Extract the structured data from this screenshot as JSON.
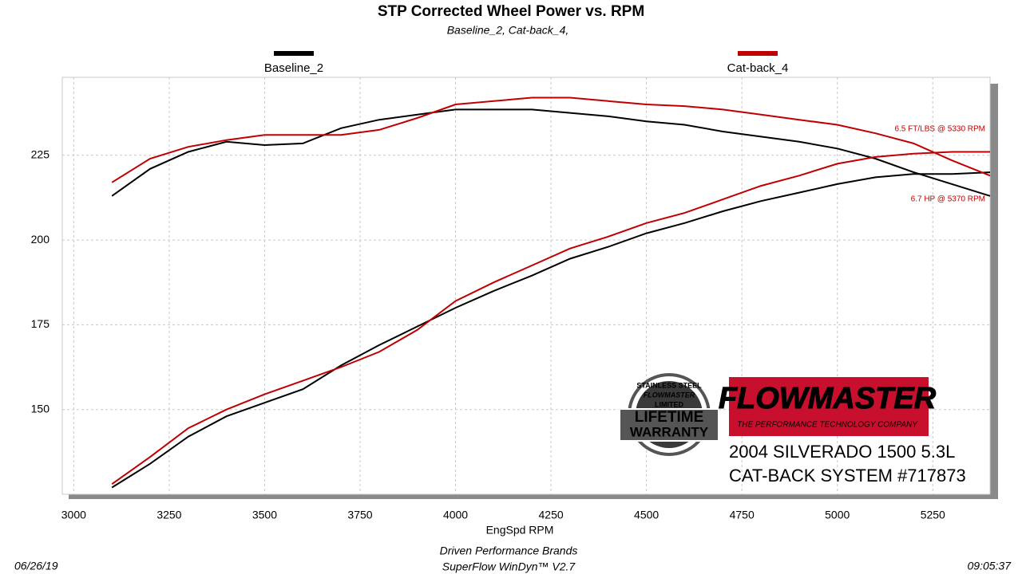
{
  "chart_data": {
    "type": "line",
    "title": "STP Corrected Wheel Power vs. RPM",
    "subtitle": "Baseline_2, Cat-back_4,",
    "x_label": "EngSpd  RPM",
    "x": [
      3100,
      3200,
      3300,
      3400,
      3500,
      3600,
      3700,
      3800,
      3900,
      4000,
      4100,
      4200,
      4300,
      4400,
      4500,
      4600,
      4700,
      4800,
      4900,
      5000,
      5100,
      5200,
      5300,
      5400
    ],
    "series": [
      {
        "name": "Baseline_2",
        "color": "#000000",
        "curves": [
          [
            213,
            221,
            226,
            229,
            228,
            228.5,
            233,
            235.5,
            237,
            238.5,
            238.5,
            238.5,
            237.5,
            236.5,
            235,
            234,
            232,
            230.5,
            229,
            227,
            224,
            220,
            216.5,
            213
          ],
          [
            127,
            134,
            142,
            148,
            152,
            156,
            163,
            169,
            174.5,
            180,
            185,
            189.5,
            194.5,
            198,
            202,
            205,
            208.5,
            211.5,
            214,
            216.5,
            218.5,
            219.5,
            219.5,
            220
          ]
        ]
      },
      {
        "name": "Cat-back_4",
        "color": "#c00000",
        "curves": [
          [
            217,
            224,
            227.5,
            229.5,
            231,
            231,
            231,
            232.5,
            236,
            240,
            241,
            242,
            242,
            241,
            240,
            239.5,
            238.5,
            237,
            235.5,
            234,
            231.5,
            228.5,
            223.5,
            219
          ],
          [
            128,
            136,
            144.5,
            150,
            154.5,
            158.5,
            162.5,
            167,
            173.5,
            182,
            187.5,
            192.5,
            197.5,
            201,
            205,
            208,
            212,
            216,
            219,
            222.5,
            224.5,
            225.5,
            226,
            226
          ]
        ]
      }
    ],
    "xlim": [
      2970,
      5400
    ],
    "ylim": [
      125,
      248
    ],
    "xticks": [
      3000,
      3250,
      3500,
      3750,
      4000,
      4250,
      4500,
      4750,
      5000,
      5250
    ],
    "yticks": [
      150,
      175,
      200,
      225
    ],
    "grid": true,
    "annotations": [
      "6.5 FT/LBS @ 5330 RPM",
      "6.7 HP @ 5370 RPM"
    ]
  },
  "branding": {
    "badge": [
      "STAINLESS STEEL",
      "FLOWMASTER",
      "LIMITED",
      "LIFETIME",
      "WARRANTY"
    ],
    "logo": "FLOWMASTER",
    "logo_tagline": "THE PERFORMANCE TECHNOLOGY COMPANY",
    "caption": [
      "2004 SILVERADO 1500 5.3L",
      "CAT-BACK SYSTEM #717873"
    ]
  },
  "footer": {
    "date": "06/26/19",
    "company": "Driven Performance Brands",
    "software": "SuperFlow WinDyn™  V2.7",
    "time": "09:05:37"
  }
}
